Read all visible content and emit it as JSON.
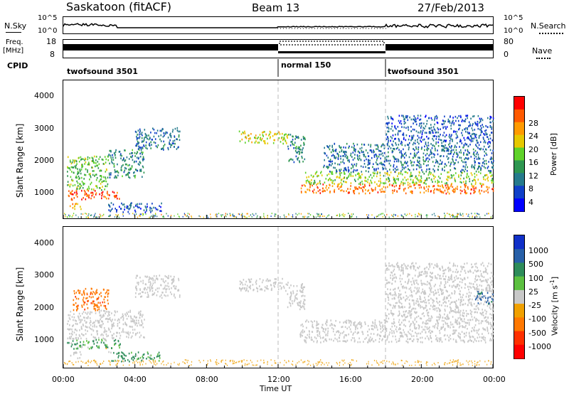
{
  "header": {
    "title": "Saskatoon (fitACF)",
    "beam": "Beam 13",
    "date": "27/Feb/2013"
  },
  "top_panels": {
    "nsky": "N.Sky",
    "nsky_ticks": [
      "10^5",
      "10^0"
    ],
    "nsearch": "N.Search",
    "nsearch_ticks": [
      "10^5",
      "10^0"
    ],
    "freq": "Freq.",
    "freq_unit": "[MHz]",
    "freq_ticks": [
      "18",
      "8"
    ],
    "nave": "Nave",
    "nave_ticks": [
      "80",
      "0"
    ],
    "cpid": "CPID",
    "modes": [
      "twofsound 3501",
      "normal 150",
      "twofsound 3501"
    ]
  },
  "power_colorbar": {
    "label": "Power [dB]",
    "ticks": [
      "28",
      "24",
      "20",
      "16",
      "12",
      "8",
      "4"
    ],
    "colors": [
      "#ff0000",
      "#ff5a00",
      "#ff9a00",
      "#e6c800",
      "#5fd22a",
      "#2e9650",
      "#257a8c",
      "#1040c8",
      "#0000ff"
    ]
  },
  "velocity_colorbar": {
    "label": "Velocity [m s",
    "label_sup": "-1",
    "label_end": "]",
    "ticks": [
      "1000",
      "500",
      "100",
      "25",
      "-25",
      "-100",
      "-500",
      "-1000"
    ],
    "colors": [
      "#1030c8",
      "#2860a8",
      "#2e8c5a",
      "#5cc040",
      "#c8c8c8",
      "#f0a000",
      "#ff7800",
      "#ff3000",
      "#ff0000"
    ]
  },
  "axes": {
    "ylabel": "Slant Range [km]",
    "xlabel": "Time UT",
    "y_ticks": [
      "4000",
      "3000",
      "2000",
      "1000"
    ],
    "x_ticks": [
      "00:00",
      "04:00",
      "08:00",
      "12:00",
      "16:00",
      "20:00",
      "00:00"
    ]
  },
  "chart_data": {
    "type": "heatmap",
    "title": "Saskatoon (fitACF)",
    "subtitle": "Beam 13",
    "date": "27/Feb/2013",
    "xlabel": "Time UT",
    "ylabel": "Slant Range [km]",
    "xlim_hours": [
      0,
      24
    ],
    "ylim_km": [
      180,
      4600
    ],
    "mode_changes_hours": [
      12,
      18
    ],
    "power_scale_db": [
      0,
      30
    ],
    "velocity_scale_ms": [
      -1000,
      1000
    ],
    "power_regions": [
      {
        "t": [
          0.3,
          1.0
        ],
        "r": [
          500,
          700
        ],
        "p": 22
      },
      {
        "t": [
          0.2,
          3.2
        ],
        "r": [
          800,
          1100
        ],
        "p": 26
      },
      {
        "t": [
          0.2,
          2.5
        ],
        "r": [
          1100,
          2200
        ],
        "p": 14
      },
      {
        "t": [
          2.5,
          4.5
        ],
        "r": [
          1500,
          2400
        ],
        "p": 10
      },
      {
        "t": [
          4.0,
          6.5
        ],
        "r": [
          2400,
          3100
        ],
        "p": 8
      },
      {
        "t": [
          2.5,
          5.5
        ],
        "r": [
          400,
          700
        ],
        "p": 6
      },
      {
        "t": [
          9.8,
          12.5
        ],
        "r": [
          2600,
          3000
        ],
        "p": 18
      },
      {
        "t": [
          12.5,
          13.5
        ],
        "r": [
          2000,
          2900
        ],
        "p": 10
      },
      {
        "t": [
          13.2,
          24
        ],
        "r": [
          1000,
          1300
        ],
        "p": 24
      },
      {
        "t": [
          13.5,
          24
        ],
        "r": [
          1300,
          1700
        ],
        "p": 16
      },
      {
        "t": [
          14.5,
          24
        ],
        "r": [
          1700,
          2600
        ],
        "p": 8
      },
      {
        "t": [
          18,
          24
        ],
        "r": [
          2600,
          3500
        ],
        "p": 6
      }
    ],
    "velocity_regions": [
      {
        "t": [
          0.3,
          1.0
        ],
        "r": [
          500,
          700
        ],
        "v": 0
      },
      {
        "t": [
          0.2,
          3.2
        ],
        "r": [
          800,
          1100
        ],
        "v": 120
      },
      {
        "t": [
          0.5,
          2.5
        ],
        "r": [
          2000,
          2700
        ],
        "v": -400
      },
      {
        "t": [
          0.2,
          4.5
        ],
        "r": [
          1100,
          2000
        ],
        "v": 0
      },
      {
        "t": [
          4.0,
          6.5
        ],
        "r": [
          2400,
          3100
        ],
        "v": 0
      },
      {
        "t": [
          2.5,
          5.5
        ],
        "r": [
          400,
          700
        ],
        "v": 150
      },
      {
        "t": [
          9.8,
          12.5
        ],
        "r": [
          2600,
          3000
        ],
        "v": 0
      },
      {
        "t": [
          12.5,
          13.5
        ],
        "r": [
          2000,
          2900
        ],
        "v": 0
      },
      {
        "t": [
          13.2,
          24
        ],
        "r": [
          1000,
          1700
        ],
        "v": 0
      },
      {
        "t": [
          18,
          24
        ],
        "r": [
          1700,
          3500
        ],
        "v": 0
      },
      {
        "t": [
          23,
          24
        ],
        "r": [
          2200,
          2600
        ],
        "v": 600
      }
    ]
  }
}
